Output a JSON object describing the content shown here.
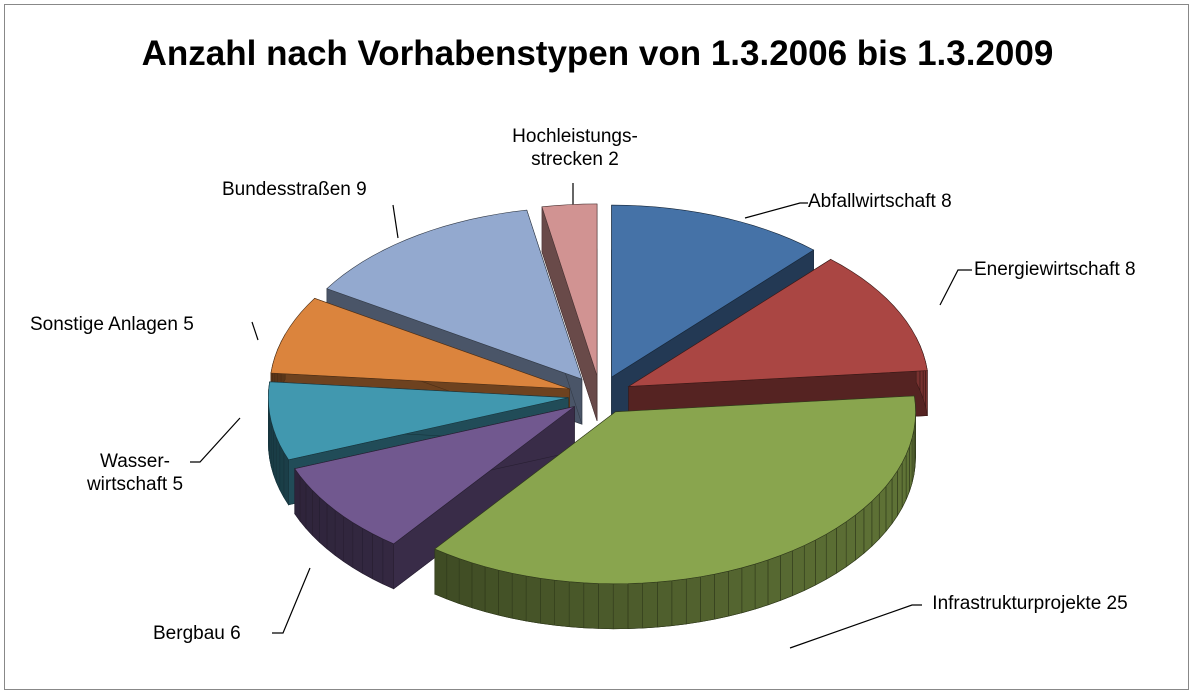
{
  "chart_data": {
    "type": "pie3d",
    "title": "Anzahl nach Vorhabenstypen von 1.3.2006 bis 1.3.2009",
    "categories": [
      "Abfallwirtschaft",
      "Energiewirtschaft",
      "Infrastrukturprojekte",
      "Bergbau",
      "Wasser-wirtschaft",
      "Sonstige Anlagen",
      "Bundesstraßen",
      "Hochleistungs-strecken"
    ],
    "values": [
      8,
      8,
      25,
      6,
      5,
      5,
      9,
      2
    ],
    "colors": [
      "#4572a7",
      "#aa4643",
      "#89a54e",
      "#71588f",
      "#4198af",
      "#db843d",
      "#93a9cf",
      "#d19392"
    ]
  }
}
